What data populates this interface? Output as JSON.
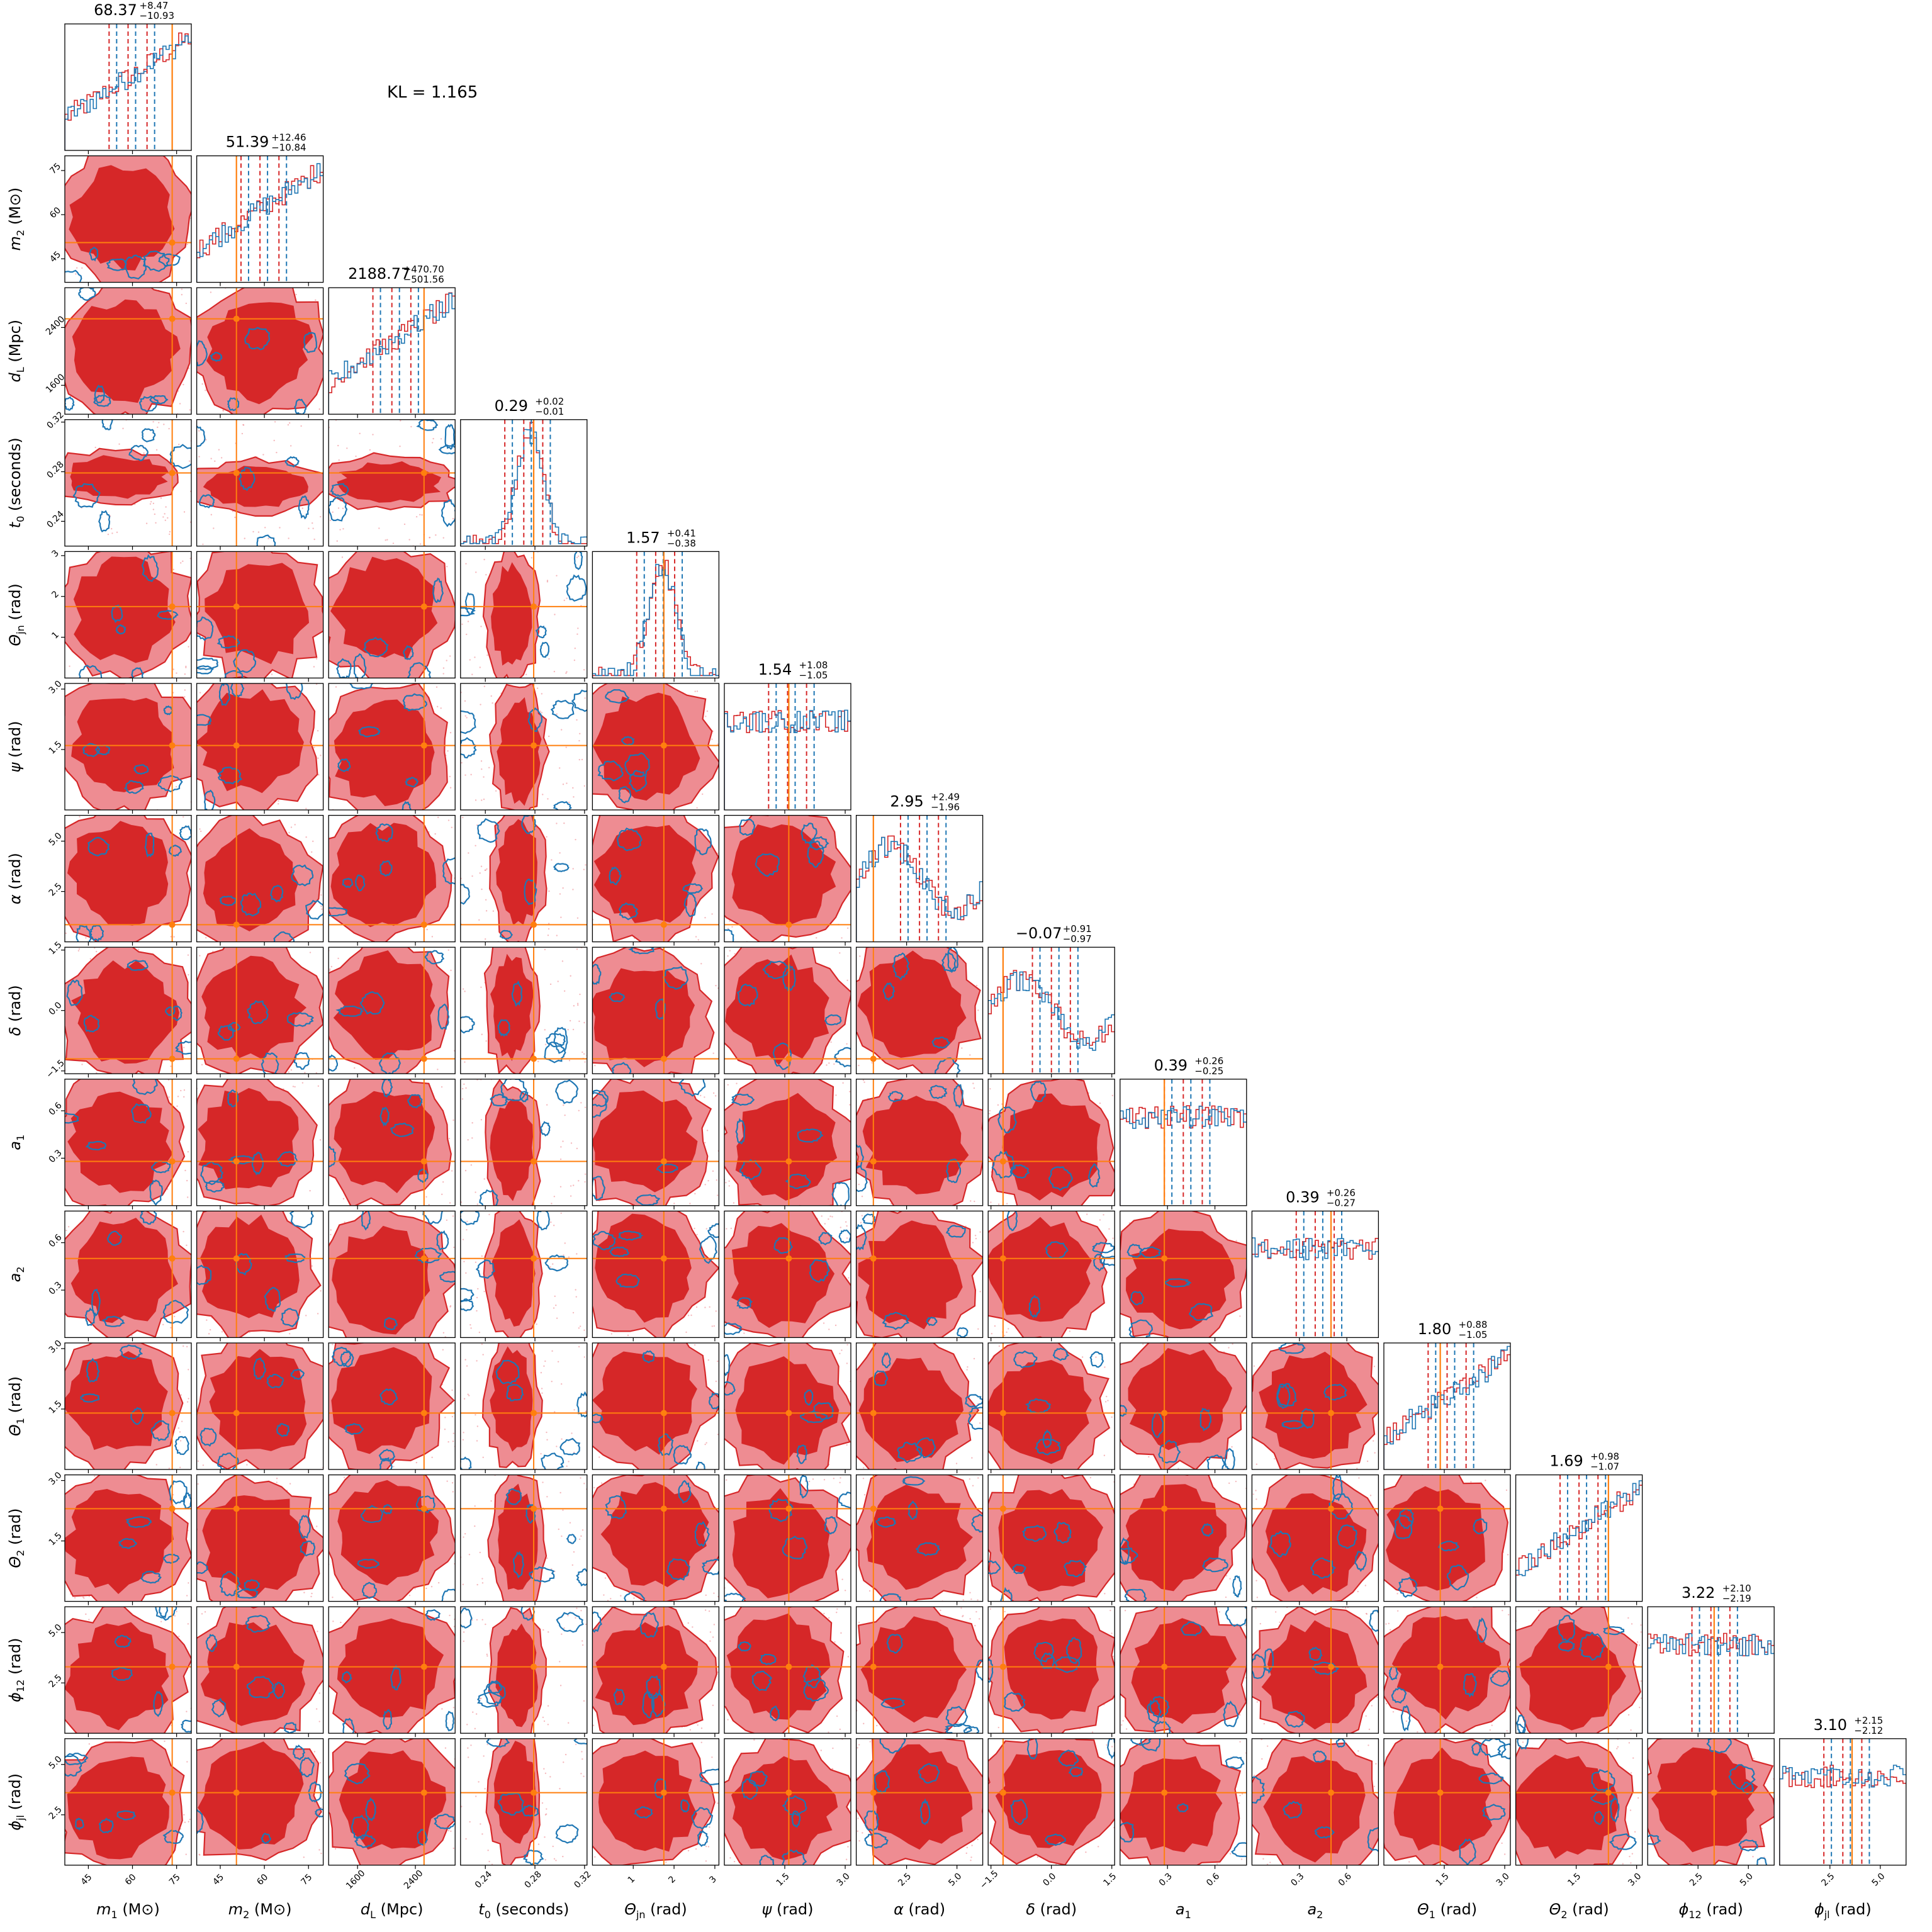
{
  "kl_label": "KL = 1.165",
  "colors": {
    "posterior_a": "#d62728",
    "posterior_a_light": "#ee8c92",
    "posterior_b": "#1f77b4",
    "truth": "#ff7f0e"
  },
  "chart_data": {
    "type": "corner",
    "parameters": [
      {
        "label_math": "m",
        "label_sub": "1",
        "label_unit": "(M⊙)",
        "truth": 73.5,
        "stat": {
          "median": "68.37",
          "plus": "+8.47",
          "minus": "−10.93"
        },
        "range": [
          37,
          80
        ],
        "ticks": [
          [
            "45",
            45
          ],
          [
            "60",
            60
          ],
          [
            "75",
            75
          ]
        ]
      },
      {
        "label_math": "m",
        "label_sub": "2",
        "label_unit": "(M⊙)",
        "truth": 50.5,
        "stat": {
          "median": "51.39",
          "plus": "+12.46",
          "minus": "−10.84"
        },
        "range": [
          37,
          80
        ],
        "ticks": [
          [
            "45",
            45
          ],
          [
            "60",
            60
          ],
          [
            "75",
            75
          ]
        ]
      },
      {
        "label_math": "d",
        "label_sub": "L",
        "label_unit": "(Mpc)",
        "truth": 2520,
        "stat": {
          "median": "2188.77",
          "plus": "+470.70",
          "minus": "−501.56"
        },
        "range": [
          1200,
          2950
        ],
        "ticks": [
          [
            "1600",
            1600
          ],
          [
            "2400",
            2400
          ]
        ]
      },
      {
        "label_math": "t",
        "label_sub": "0",
        "label_unit": "(seconds)",
        "truth": 0.279,
        "stat": {
          "median": "0.29",
          "plus": "+0.02",
          "minus": "−0.01"
        },
        "range": [
          0.22,
          0.322
        ],
        "ticks": [
          [
            "0.24",
            0.24
          ],
          [
            "0.28",
            0.28
          ],
          [
            "0.32",
            0.32
          ]
        ]
      },
      {
        "label_math": "Θ",
        "label_sub": "jn",
        "label_unit": "(rad)",
        "truth": 1.75,
        "stat": {
          "median": "1.57",
          "plus": "+0.41",
          "minus": "−0.38"
        },
        "range": [
          0,
          3.1
        ],
        "ticks": [
          [
            "1",
            1
          ],
          [
            "2",
            2
          ],
          [
            "3",
            3
          ]
        ]
      },
      {
        "label_math": "ψ",
        "label_sub": "",
        "label_unit": "(rad)",
        "truth": 1.6,
        "stat": {
          "median": "1.54",
          "plus": "+1.08",
          "minus": "−1.05"
        },
        "range": [
          0,
          3.14
        ],
        "ticks": [
          [
            "1.5",
            1.5
          ],
          [
            "3.0",
            3.0
          ]
        ]
      },
      {
        "label_math": "α",
        "label_sub": "",
        "label_unit": "(rad)",
        "truth": 0.85,
        "stat": {
          "median": "2.95",
          "plus": "+2.49",
          "minus": "−1.96"
        },
        "range": [
          0,
          6.28
        ],
        "ticks": [
          [
            "2.5",
            2.5
          ],
          [
            "5.0",
            5.0
          ]
        ]
      },
      {
        "label_math": "δ",
        "label_sub": "",
        "label_unit": "(rad)",
        "truth": -1.2,
        "stat": {
          "median": "−0.07",
          "plus": "+0.91",
          "minus": "−0.97"
        },
        "range": [
          -1.57,
          1.57
        ],
        "ticks": [
          [
            "−1.5",
            -1.5
          ],
          [
            "0.0",
            0.0
          ],
          [
            "1.5",
            1.5
          ]
        ]
      },
      {
        "label_math": "a",
        "label_sub": "1",
        "label_unit": "",
        "truth": 0.28,
        "stat": {
          "median": "0.39",
          "plus": "+0.26",
          "minus": "−0.25"
        },
        "range": [
          0,
          0.8
        ],
        "ticks": [
          [
            "0.3",
            0.3
          ],
          [
            "0.6",
            0.6
          ]
        ]
      },
      {
        "label_math": "a",
        "label_sub": "2",
        "label_unit": "",
        "truth": 0.5,
        "stat": {
          "median": "0.39",
          "plus": "+0.26",
          "minus": "−0.27"
        },
        "range": [
          0,
          0.8
        ],
        "ticks": [
          [
            "0.3",
            0.3
          ],
          [
            "0.6",
            0.6
          ]
        ]
      },
      {
        "label_math": "Θ",
        "label_sub": "1",
        "label_unit": "(rad)",
        "truth": 1.4,
        "stat": {
          "median": "1.80",
          "plus": "+0.88",
          "minus": "−1.05"
        },
        "range": [
          0,
          3.14
        ],
        "ticks": [
          [
            "1.5",
            1.5
          ],
          [
            "3.0",
            3.0
          ]
        ]
      },
      {
        "label_math": "Θ",
        "label_sub": "2",
        "label_unit": "(rad)",
        "truth": 2.3,
        "stat": {
          "median": "1.69",
          "plus": "+0.98",
          "minus": "−1.07"
        },
        "range": [
          0,
          3.14
        ],
        "ticks": [
          [
            "1.5",
            1.5
          ],
          [
            "3.0",
            3.0
          ]
        ]
      },
      {
        "label_math": "ϕ",
        "label_sub": "12",
        "label_unit": "(rad)",
        "truth": 3.3,
        "stat": {
          "median": "3.22",
          "plus": "+2.10",
          "minus": "−2.19"
        },
        "range": [
          0,
          6.28
        ],
        "ticks": [
          [
            "2.5",
            2.5
          ],
          [
            "5.0",
            5.0
          ]
        ]
      },
      {
        "label_math": "ϕ",
        "label_sub": "jl",
        "label_unit": "(rad)",
        "truth": 3.6,
        "stat": {
          "median": "3.10",
          "plus": "+2.15",
          "minus": "−2.12"
        },
        "range": [
          0,
          6.28
        ],
        "ticks": [
          [
            "2.5",
            2.5
          ],
          [
            "5.0",
            5.0
          ]
        ]
      }
    ]
  }
}
